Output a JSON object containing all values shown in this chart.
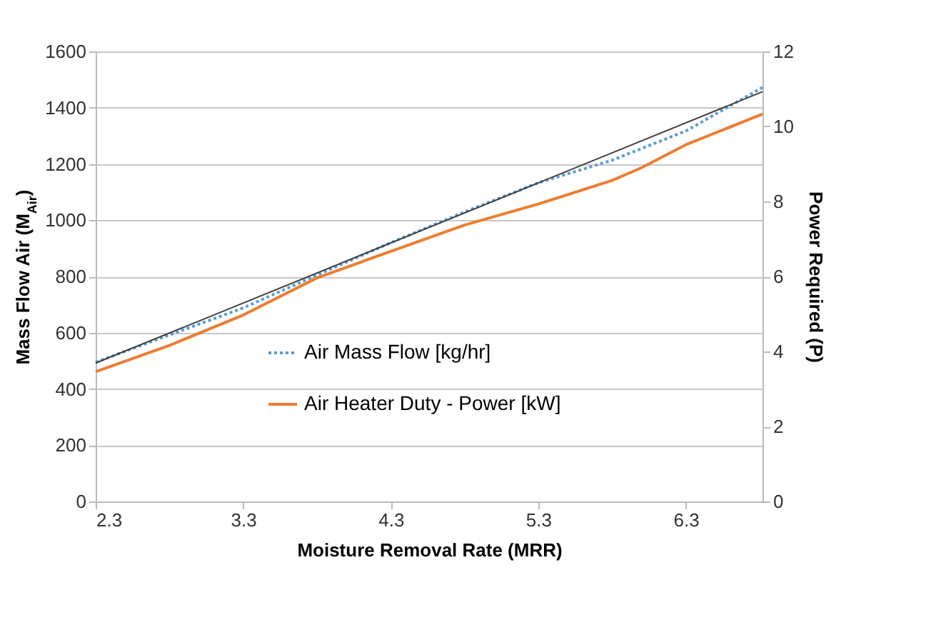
{
  "chart_data": {
    "type": "line",
    "xlabel": "Moisture Removal Rate (MRR)",
    "ylabel": "Mass Flow Air (M$_{Air}$)",
    "y2label": "Power Required (P)",
    "xlim": [
      2.3,
      6.82
    ],
    "xticks": [
      2.3,
      3.3,
      4.3,
      5.3,
      6.3
    ],
    "ylim": [
      0,
      1600
    ],
    "yticks": [
      0,
      200,
      400,
      600,
      800,
      1000,
      1200,
      1400,
      1600
    ],
    "y2lim": [
      0,
      12
    ],
    "y2ticks": [
      0,
      2,
      4,
      6,
      8,
      10,
      12
    ],
    "grid": "y",
    "legend": "bottom",
    "series": [
      {
        "name": "Air Mass Flow [kg/hr]",
        "color": "#5b9bd5",
        "line_style": "dotted",
        "x": [
          2.3,
          2.8,
          3.3,
          3.8,
          4.3,
          4.8,
          5.3,
          5.8,
          6.3,
          6.82
        ],
        "values": [
          495,
          592,
          688,
          805,
          920,
          1029,
          1133,
          1213,
          1317,
          1472
        ]
      },
      {
        "name": "Air Heater Duty - Power [kW]",
        "color": "#ed7d31",
        "line_style": "solid",
        "axis": "y2",
        "x": [
          2.3,
          2.8,
          3.3,
          3.8,
          4.3,
          4.8,
          5.3,
          5.8,
          6.0,
          6.3,
          6.82
        ],
        "values": [
          3.46,
          4.16,
          4.97,
          5.96,
          6.67,
          7.37,
          7.93,
          8.56,
          8.9,
          9.51,
          10.33
        ]
      },
      {
        "color": "#404040",
        "line_style": "solid",
        "x": [
          2.3,
          6.82
        ],
        "values": [
          492,
          1457
        ]
      }
    ]
  }
}
